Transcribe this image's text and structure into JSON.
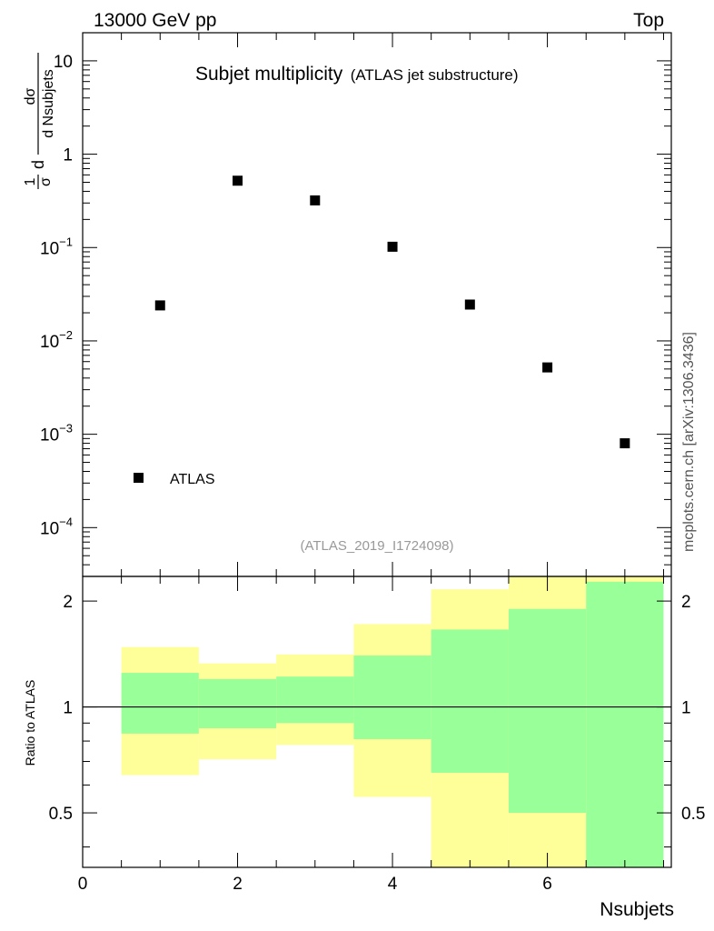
{
  "header": {
    "left": "13000 GeV pp",
    "right": "Top"
  },
  "plot_title": {
    "main": "Subjet multiplicity",
    "sub": "(ATLAS jet substructure)"
  },
  "analysis_id": "(ATLAS_2019_I1724098)",
  "side_credit": "mcplots.cern.ch [arXiv:1306.3436]",
  "ylabel_main": {
    "one": "1",
    "sigma": "σ",
    "d": "d",
    "dsigma": "dσ",
    "dnsub": "d Nsubjets"
  },
  "colors": {
    "inner_band": "#99ff99",
    "outer_band": "#ffff99",
    "marker": "#000000"
  },
  "chart_data": [
    {
      "type": "scatter",
      "panel": "main",
      "yscale": "log",
      "legend_position": "bottom-left",
      "x": [
        1,
        2,
        3,
        4,
        5,
        6,
        7
      ],
      "series": [
        {
          "name": "ATLAS",
          "values": [
            0.024,
            0.52,
            0.32,
            0.102,
            0.0245,
            0.0052,
            0.0008
          ]
        }
      ],
      "ylim": [
        3e-05,
        20
      ],
      "xlim": [
        0,
        7.6
      ],
      "y_ticks": [
        {
          "value": 0.0001,
          "base": "10",
          "exp": "−4"
        },
        {
          "value": 0.001,
          "base": "10",
          "exp": "−3"
        },
        {
          "value": 0.01,
          "base": "10",
          "exp": "−2"
        },
        {
          "value": 0.1,
          "base": "10",
          "exp": "−1"
        },
        {
          "value": 1,
          "base": "1",
          "exp": ""
        },
        {
          "value": 10,
          "base": "10",
          "exp": ""
        }
      ]
    },
    {
      "type": "area",
      "panel": "ratio",
      "ylabel": "Ratio to ATLAS",
      "xlabel": "Nsubjets",
      "xlim": [
        0,
        7.6
      ],
      "ylim": [
        0.35,
        2.35
      ],
      "x_ticks": [
        0,
        2,
        4,
        6
      ],
      "y_ticks": [
        0.5,
        1,
        2
      ],
      "reference_line": 1,
      "bins": [
        0.5,
        1.5,
        2.5,
        3.5,
        4.5,
        5.5,
        6.5,
        7.5
      ],
      "inner_band": {
        "lower": [
          0.84,
          0.87,
          0.9,
          0.81,
          0.65,
          0.5,
          0.35
        ],
        "upper": [
          1.25,
          1.2,
          1.22,
          1.4,
          1.66,
          1.9,
          2.27
        ]
      },
      "outer_band": {
        "lower": [
          0.64,
          0.71,
          0.78,
          0.555,
          0.35,
          0.35,
          0.35
        ],
        "upper": [
          1.48,
          1.33,
          1.41,
          1.72,
          2.16,
          2.35,
          2.35
        ]
      }
    }
  ]
}
